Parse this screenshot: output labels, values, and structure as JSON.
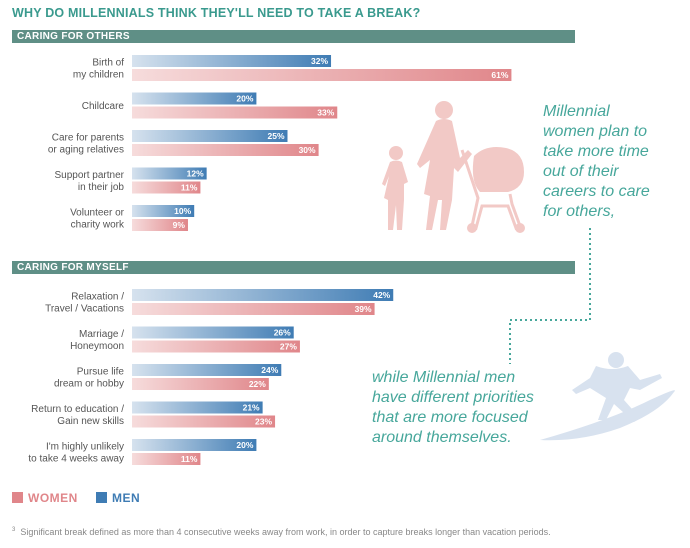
{
  "title": "WHY DO MILLENNIALS THINK THEY'LL NEED TO TAKE A BREAK?",
  "notes": {
    "women": [
      "Millennial",
      "women plan to",
      "take more time",
      "out of their",
      "careers to care",
      "for others,"
    ],
    "men": [
      "while Millennial men",
      "have different priorities",
      "that are more focused",
      "around themselves."
    ]
  },
  "legend": {
    "women": "WOMEN",
    "men": "MEN"
  },
  "footnote": {
    "marker": "3",
    "text": "Significant break defined as more than 4 consecutive weeks away from work, in order to capture breaks longer than vacation periods."
  },
  "colors": {
    "women": "#e0868a",
    "men": "#3f7cb4",
    "section": "#5f8f86",
    "accent": "#47a79b"
  },
  "illustrations": [
    "woman-with-child-and-stroller-icon",
    "surfer-icon"
  ],
  "chart_data": {
    "type": "bar",
    "orientation": "horizontal",
    "unit": "%",
    "xlim": [
      0,
      70
    ],
    "series_order": [
      "Men",
      "Women"
    ],
    "sections": [
      {
        "name": "CARING FOR OTHERS",
        "categories": [
          {
            "lines": [
              "Birth of",
              "my children"
            ],
            "men": 32,
            "women": 61
          },
          {
            "lines": [
              "Childcare"
            ],
            "men": 20,
            "women": 33
          },
          {
            "lines": [
              "Care for parents",
              "or aging relatives"
            ],
            "men": 25,
            "women": 30
          },
          {
            "lines": [
              "Support partner",
              "in their job"
            ],
            "men": 12,
            "women": 11
          },
          {
            "lines": [
              "Volunteer or",
              "charity work"
            ],
            "men": 10,
            "women": 9
          }
        ]
      },
      {
        "name": "CARING FOR MYSELF",
        "categories": [
          {
            "lines": [
              "Relaxation /",
              "Travel / Vacations"
            ],
            "men": 42,
            "women": 39
          },
          {
            "lines": [
              "Marriage /",
              "Honeymoon"
            ],
            "men": 26,
            "women": 27
          },
          {
            "lines": [
              "Pursue life",
              "dream or hobby"
            ],
            "men": 24,
            "women": 22
          },
          {
            "lines": [
              "Return to education /",
              "Gain new skills"
            ],
            "men": 21,
            "women": 23
          },
          {
            "lines": [
              "I'm highly unlikely",
              "to take 4 weeks away"
            ],
            "men": 20,
            "women": 11
          }
        ]
      }
    ]
  }
}
